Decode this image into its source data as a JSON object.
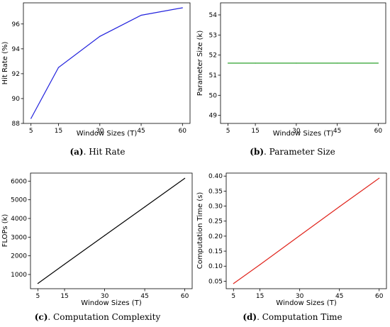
{
  "captions": [
    {
      "tag": "(a)",
      "text": ". Hit Rate"
    },
    {
      "tag": "(b)",
      "text": ". Parameter Size"
    },
    {
      "tag": "(c)",
      "text": ". Computation Complexity"
    },
    {
      "tag": "(d)",
      "text": ". Computation Time"
    }
  ],
  "chart_data": [
    {
      "type": "line",
      "x": [
        5,
        15,
        30,
        45,
        60
      ],
      "series": [
        {
          "values": [
            88.4,
            92.5,
            95.0,
            96.7,
            97.3
          ],
          "color": "#2222dd"
        }
      ],
      "xlabel": "Window Sizes (T)",
      "ylabel": "Hit Rate (%)",
      "xticks": [
        "5",
        "15",
        "30",
        "45",
        "60"
      ],
      "yticks": [
        88,
        90,
        92,
        94,
        96
      ],
      "yticklabels": [
        "88",
        "90",
        "92",
        "94",
        "96"
      ],
      "ylim": [
        88,
        97.7
      ]
    },
    {
      "type": "line",
      "x": [
        5,
        15,
        30,
        45,
        60
      ],
      "series": [
        {
          "values": [
            51.6,
            51.6,
            51.6,
            51.6,
            51.6
          ],
          "color": "#2ca02c"
        }
      ],
      "xlabel": "Window Sizes (T)",
      "ylabel": "Parameter Size (k)",
      "xticks": [
        "5",
        "15",
        "30",
        "45",
        "60"
      ],
      "yticks": [
        49,
        50,
        51,
        52,
        53,
        54
      ],
      "yticklabels": [
        "49",
        "50",
        "51",
        "52",
        "53",
        "54"
      ],
      "ylim": [
        48.6,
        54.6
      ]
    },
    {
      "type": "line",
      "x": [
        5,
        15,
        30,
        45,
        60
      ],
      "series": [
        {
          "values": [
            520,
            1550,
            3090,
            4620,
            6150
          ],
          "color": "#000000"
        }
      ],
      "xlabel": "Window Sizes (T)",
      "ylabel": "FLOPs (k)",
      "xticks": [
        "5",
        "15",
        "30",
        "45",
        "60"
      ],
      "yticks": [
        1000,
        2000,
        3000,
        4000,
        5000,
        6000
      ],
      "yticklabels": [
        "1000",
        "2000",
        "3000",
        "4000",
        "5000",
        "6000"
      ],
      "ylim": [
        240,
        6430
      ]
    },
    {
      "type": "line",
      "x": [
        5,
        15,
        30,
        45,
        60
      ],
      "series": [
        {
          "values": [
            0.042,
            0.105,
            0.202,
            0.298,
            0.393
          ],
          "color": "#e0231b"
        }
      ],
      "xlabel": "Window Sizes (T)",
      "ylabel": "Computation Time (s)",
      "xticks": [
        "5",
        "15",
        "30",
        "45",
        "60"
      ],
      "yticks": [
        0.05,
        0.1,
        0.15,
        0.2,
        0.25,
        0.3,
        0.35,
        0.4
      ],
      "yticklabels": [
        "0.05",
        "0.10",
        "0.15",
        "0.20",
        "0.25",
        "0.30",
        "0.35",
        "0.40"
      ],
      "ylim": [
        0.025,
        0.41
      ]
    }
  ]
}
